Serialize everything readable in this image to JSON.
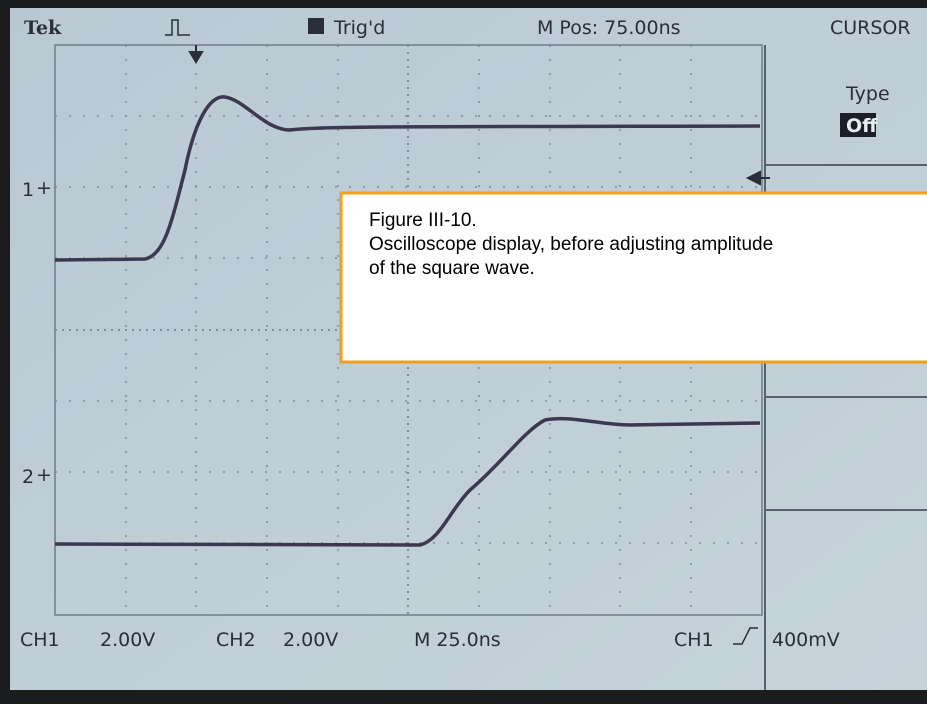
{
  "header": {
    "brand": "Tek",
    "trigger_state": "Trig'd",
    "position": "M Pos: 75.00ns",
    "menu": "CURSOR"
  },
  "menu": {
    "label": "Type",
    "value": "Off"
  },
  "channels": {
    "ch1_marker": "1",
    "ch2_marker": "2"
  },
  "readout": {
    "ch1": "CH1",
    "ch1_scale": "2.00V",
    "ch2": "CH2",
    "ch2_scale": "2.00V",
    "timebase": "M 25.0ns",
    "trigger_source": "CH1",
    "trigger_level": "400mV"
  },
  "caption": {
    "lines": [
      "Figure III-10.",
      "Oscilloscope display, before adjusting amplitude",
      "of the square wave."
    ]
  }
}
